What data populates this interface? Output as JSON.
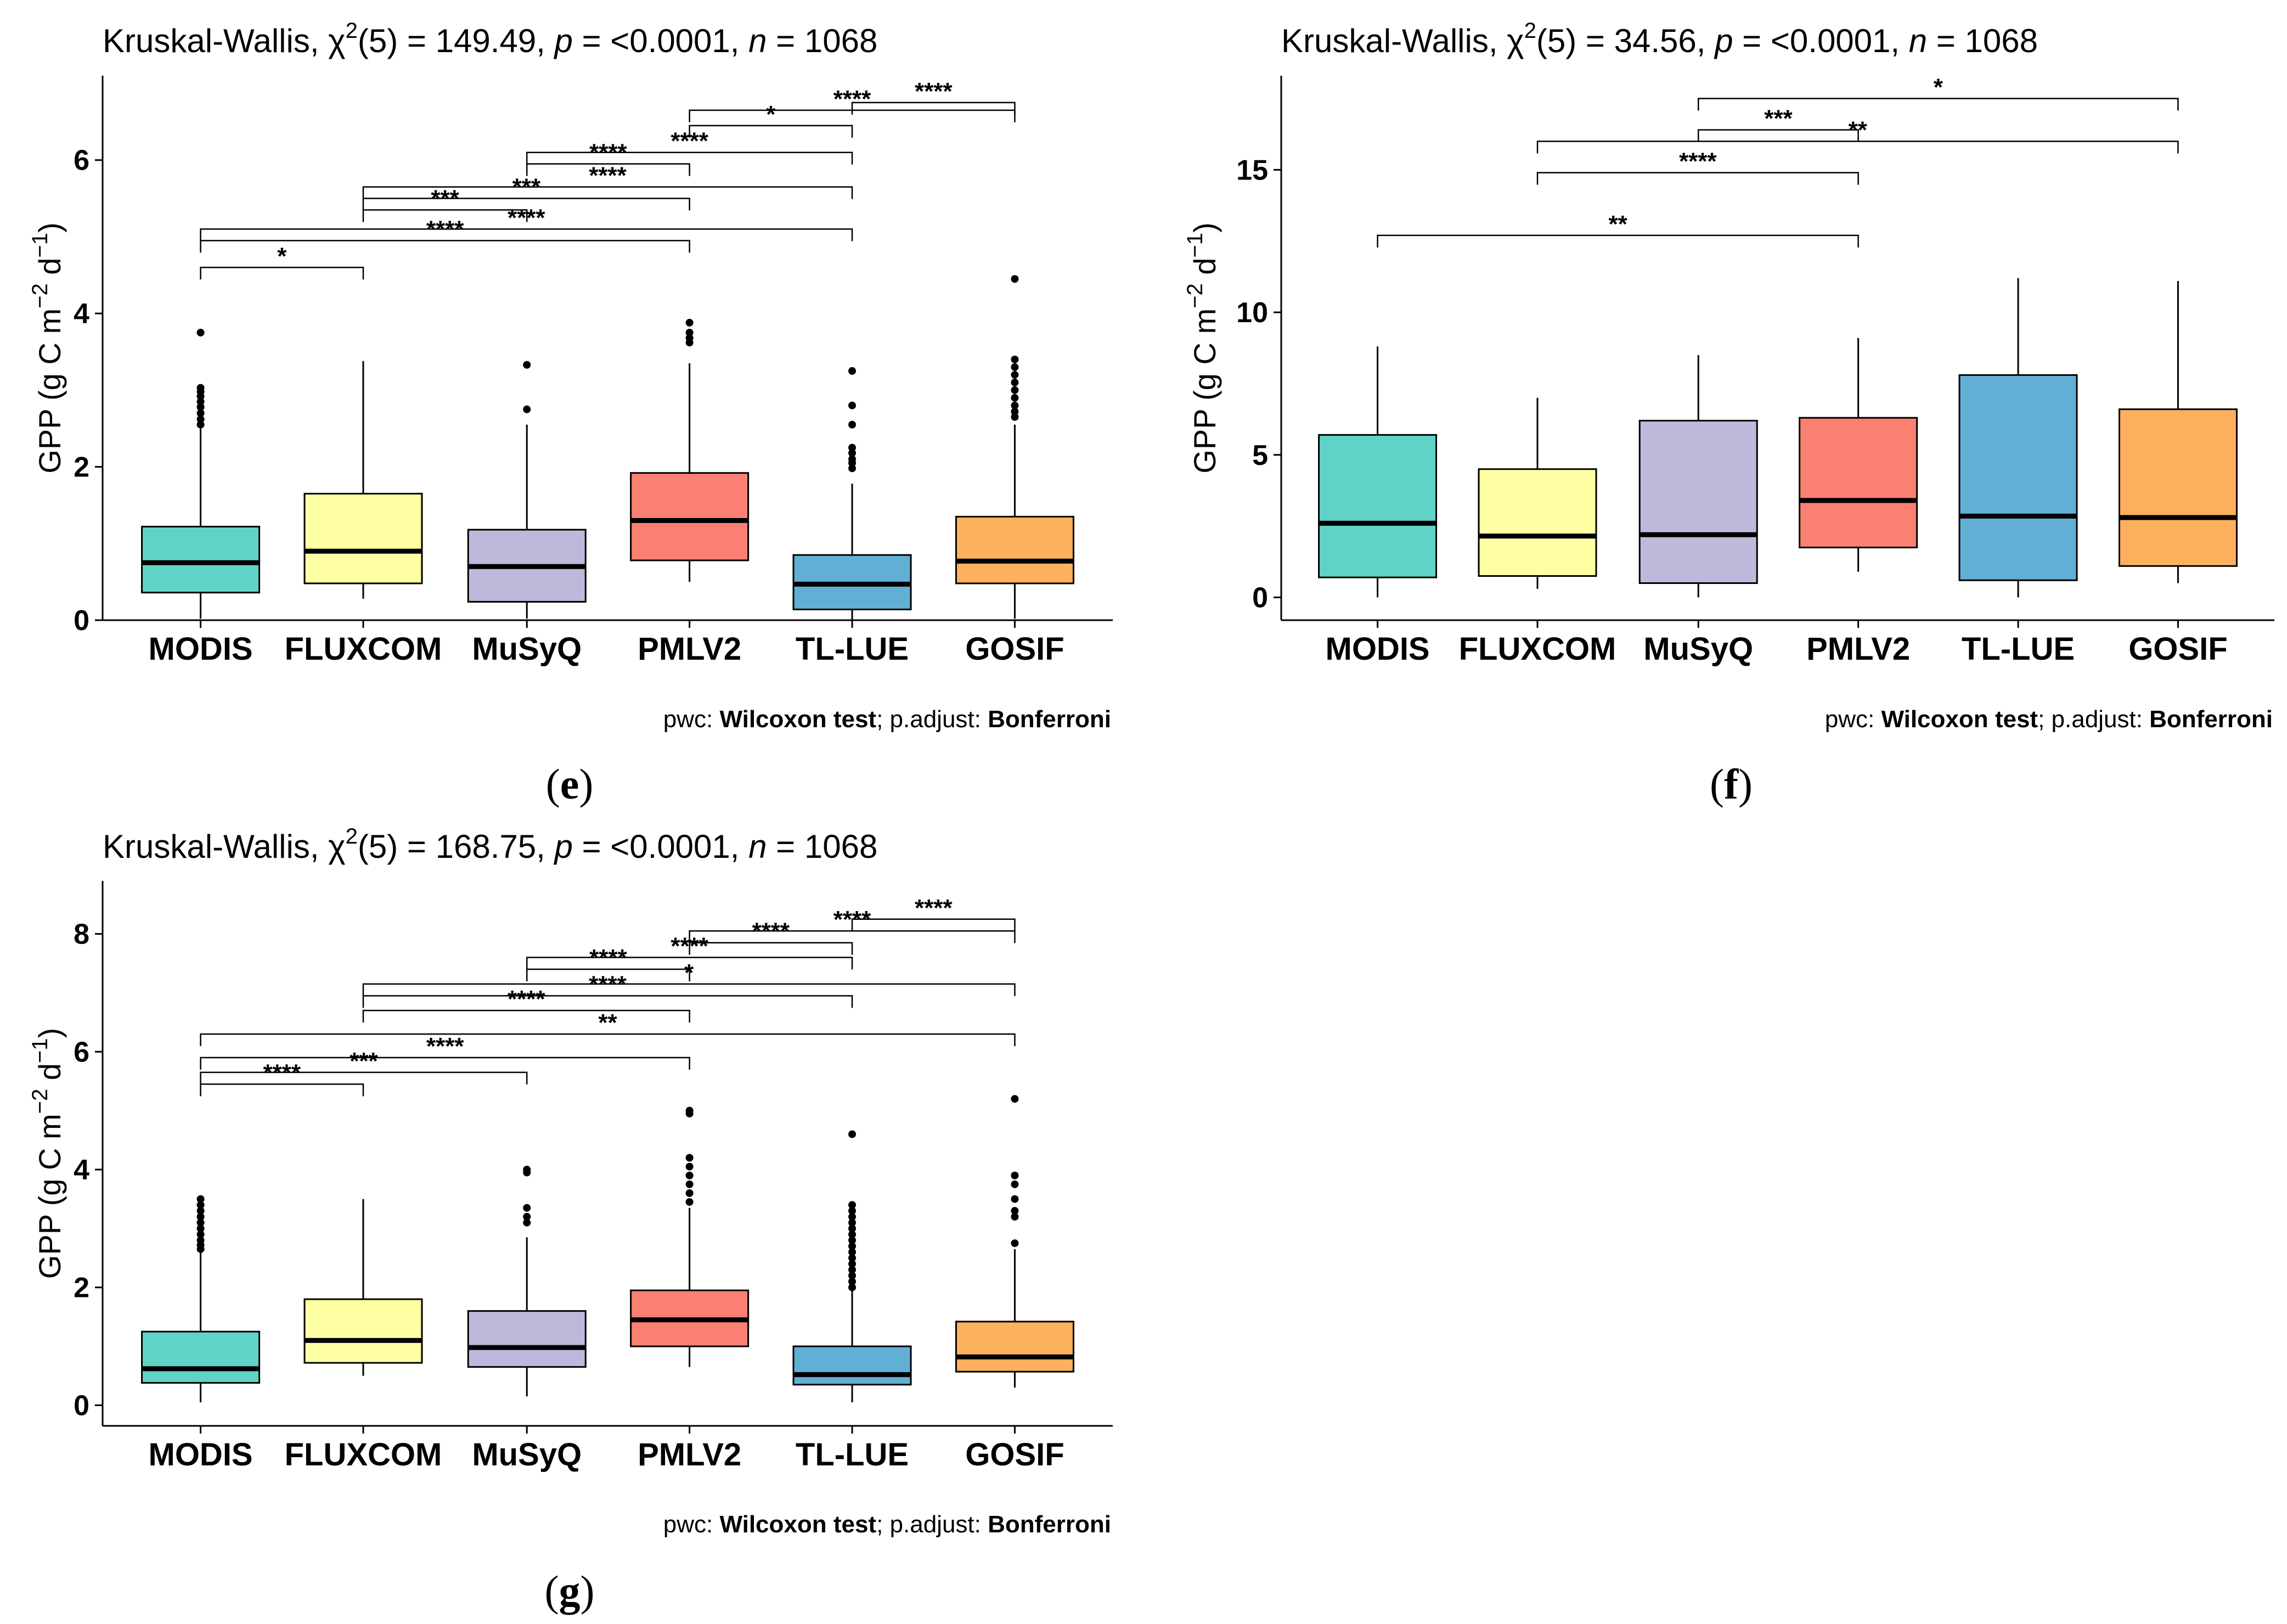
{
  "chart_data": [
    {
      "panel": "(e)",
      "type": "box",
      "title": {
        "test": "Kruskal-Wallis, ",
        "chi": "χ",
        "sup": "2",
        "df": "(5) = 149.49, ",
        "p_label": "p",
        "p_val": " = <0.0001, ",
        "n_label": "n",
        "n_val": " = 1068"
      },
      "ylabel": {
        "pre": "GPP (g C m",
        "sup1": "−2",
        "mid": " d",
        "sup2": "−1",
        "post": ")"
      },
      "ylim": [
        0,
        7.1
      ],
      "yticks": [
        0,
        2,
        4,
        6
      ],
      "footer": {
        "pre": "pwc: ",
        "test": "Wilcoxon test",
        "mid": "; p.adjust: ",
        "adj": "Bonferroni"
      },
      "categories": [
        "MODIS",
        "FLUXCOM",
        "MuSyQ",
        "PMLV2",
        "TL-LUE",
        "GOSIF"
      ],
      "colors": [
        "#5fd3c5",
        "#ffffa3",
        "#bfb8da",
        "#fa8072",
        "#62afd6",
        "#fdb05e"
      ],
      "boxes": [
        {
          "whislo": 0.02,
          "q1": 0.36,
          "med": 0.75,
          "q3": 1.22,
          "whishi": 2.5,
          "outliers": [
            2.55,
            2.62,
            2.7,
            2.78,
            2.85,
            2.92,
            2.98,
            3.03,
            3.75
          ]
        },
        {
          "whislo": 0.28,
          "q1": 0.48,
          "med": 0.9,
          "q3": 1.65,
          "whishi": 3.38,
          "outliers": []
        },
        {
          "whislo": 0.02,
          "q1": 0.24,
          "med": 0.7,
          "q3": 1.18,
          "whishi": 2.55,
          "outliers": [
            2.75,
            3.33
          ]
        },
        {
          "whislo": 0.5,
          "q1": 0.78,
          "med": 1.3,
          "q3": 1.92,
          "whishi": 3.35,
          "outliers": [
            3.62,
            3.68,
            3.75,
            3.88
          ]
        },
        {
          "whislo": 0.0,
          "q1": 0.14,
          "med": 0.47,
          "q3": 0.85,
          "whishi": 1.78,
          "outliers": [
            1.98,
            2.05,
            2.1,
            2.18,
            2.25,
            2.55,
            2.8,
            3.25
          ]
        },
        {
          "whislo": 0.02,
          "q1": 0.48,
          "med": 0.77,
          "q3": 1.35,
          "whishi": 2.55,
          "outliers": [
            2.65,
            2.72,
            2.8,
            2.9,
            3.0,
            3.1,
            3.2,
            3.3,
            3.4,
            4.45
          ]
        }
      ],
      "brackets": [
        {
          "from": 0,
          "to": 1,
          "y": 4.6,
          "label": "*"
        },
        {
          "from": 0,
          "to": 3,
          "y": 4.95,
          "label": "****"
        },
        {
          "from": 0,
          "to": 4,
          "y": 5.1,
          "label": "****"
        },
        {
          "from": 1,
          "to": 2,
          "y": 5.35,
          "label": "***"
        },
        {
          "from": 1,
          "to": 3,
          "y": 5.5,
          "label": "***"
        },
        {
          "from": 1,
          "to": 4,
          "y": 5.65,
          "label": "****"
        },
        {
          "from": 2,
          "to": 3,
          "y": 5.95,
          "label": "****"
        },
        {
          "from": 2,
          "to": 4,
          "y": 6.1,
          "label": "****"
        },
        {
          "from": 3,
          "to": 4,
          "y": 6.45,
          "label": "*"
        },
        {
          "from": 3,
          "to": 5,
          "y": 6.65,
          "label": "****"
        },
        {
          "from": 4,
          "to": 5,
          "y": 6.75,
          "label": "****"
        }
      ]
    },
    {
      "panel": "(f)",
      "type": "box",
      "title": {
        "test": "Kruskal-Wallis, ",
        "chi": "χ",
        "sup": "2",
        "df": "(5) = 34.56, ",
        "p_label": "p",
        "p_val": " = <0.0001, ",
        "n_label": "n",
        "n_val": " = 1068"
      },
      "ylabel": {
        "pre": "GPP (g C m",
        "sup1": "−2",
        "mid": " d",
        "sup2": "−1",
        "post": ")"
      },
      "ylim": [
        -0.8,
        18.3
      ],
      "yticks": [
        0,
        5,
        10,
        15
      ],
      "footer": {
        "pre": "pwc: ",
        "test": "Wilcoxon test",
        "mid": "; p.adjust: ",
        "adj": "Bonferroni"
      },
      "categories": [
        "MODIS",
        "FLUXCOM",
        "MuSyQ",
        "PMLV2",
        "TL-LUE",
        "GOSIF"
      ],
      "colors": [
        "#5fd3c5",
        "#ffffa3",
        "#bfb8da",
        "#fa8072",
        "#62afd6",
        "#fdb05e"
      ],
      "boxes": [
        {
          "whislo": 0.0,
          "q1": 0.7,
          "med": 2.6,
          "q3": 5.7,
          "whishi": 8.8,
          "outliers": []
        },
        {
          "whislo": 0.3,
          "q1": 0.75,
          "med": 2.15,
          "q3": 4.5,
          "whishi": 7.0,
          "outliers": []
        },
        {
          "whislo": 0.0,
          "q1": 0.5,
          "med": 2.2,
          "q3": 6.2,
          "whishi": 8.5,
          "outliers": []
        },
        {
          "whislo": 0.9,
          "q1": 1.75,
          "med": 3.4,
          "q3": 6.3,
          "whishi": 9.1,
          "outliers": []
        },
        {
          "whislo": 0.0,
          "q1": 0.6,
          "med": 2.85,
          "q3": 7.8,
          "whishi": 11.2,
          "outliers": []
        },
        {
          "whislo": 0.5,
          "q1": 1.1,
          "med": 2.8,
          "q3": 6.6,
          "whishi": 11.1,
          "outliers": []
        }
      ],
      "brackets": [
        {
          "from": 0,
          "to": 3,
          "y": 12.7,
          "label": "**"
        },
        {
          "from": 1,
          "to": 3,
          "y": 14.9,
          "label": "****"
        },
        {
          "from": 1,
          "to": 5,
          "y": 16.0,
          "label": "**"
        },
        {
          "from": 2,
          "to": 3,
          "y": 16.4,
          "label": "***"
        },
        {
          "from": 2,
          "to": 5,
          "y": 17.5,
          "label": "*"
        }
      ]
    },
    {
      "panel": "(g)",
      "type": "box",
      "title": {
        "test": "Kruskal-Wallis, ",
        "chi": "χ",
        "sup": "2",
        "df": "(5) = 168.75, ",
        "p_label": "p",
        "p_val": " = <0.0001, ",
        "n_label": "n",
        "n_val": " = 1068"
      },
      "ylabel": {
        "pre": "GPP (g C m",
        "sup1": "−2",
        "mid": " d",
        "sup2": "−1",
        "post": ")"
      },
      "ylim": [
        -0.35,
        8.9
      ],
      "yticks": [
        0,
        2,
        4,
        6,
        8
      ],
      "footer": {
        "pre": "pwc: ",
        "test": "Wilcoxon test",
        "mid": "; p.adjust: ",
        "adj": "Bonferroni"
      },
      "categories": [
        "MODIS",
        "FLUXCOM",
        "MuSyQ",
        "PMLV2",
        "TL-LUE",
        "GOSIF"
      ],
      "colors": [
        "#5fd3c5",
        "#ffffa3",
        "#bfb8da",
        "#fa8072",
        "#62afd6",
        "#fdb05e"
      ],
      "boxes": [
        {
          "whislo": 0.05,
          "q1": 0.38,
          "med": 0.62,
          "q3": 1.25,
          "whishi": 2.6,
          "outliers": [
            2.65,
            2.72,
            2.8,
            2.9,
            3.0,
            3.1,
            3.2,
            3.3,
            3.4,
            3.5
          ]
        },
        {
          "whislo": 0.5,
          "q1": 0.72,
          "med": 1.1,
          "q3": 1.8,
          "whishi": 3.5,
          "outliers": []
        },
        {
          "whislo": 0.15,
          "q1": 0.65,
          "med": 0.98,
          "q3": 1.6,
          "whishi": 2.85,
          "outliers": [
            3.1,
            3.2,
            3.35,
            3.95,
            4.0
          ]
        },
        {
          "whislo": 0.65,
          "q1": 1.0,
          "med": 1.45,
          "q3": 1.95,
          "whishi": 3.35,
          "outliers": [
            3.45,
            3.6,
            3.75,
            3.9,
            4.05,
            4.2,
            4.95,
            5.0
          ]
        },
        {
          "whislo": 0.05,
          "q1": 0.35,
          "med": 0.52,
          "q3": 1.0,
          "whishi": 1.95,
          "outliers": [
            2.0,
            2.1,
            2.2,
            2.3,
            2.4,
            2.5,
            2.6,
            2.7,
            2.8,
            2.9,
            3.0,
            3.1,
            3.2,
            3.3,
            3.4,
            4.6
          ]
        },
        {
          "whislo": 0.3,
          "q1": 0.57,
          "med": 0.82,
          "q3": 1.42,
          "whishi": 2.65,
          "outliers": [
            2.75,
            3.2,
            3.3,
            3.5,
            3.75,
            3.9,
            5.2
          ]
        }
      ],
      "brackets": [
        {
          "from": 0,
          "to": 1,
          "y": 5.45,
          "label": "****"
        },
        {
          "from": 0,
          "to": 2,
          "y": 5.65,
          "label": "***"
        },
        {
          "from": 0,
          "to": 3,
          "y": 5.9,
          "label": "****"
        },
        {
          "from": 0,
          "to": 5,
          "y": 6.3,
          "label": "**"
        },
        {
          "from": 1,
          "to": 3,
          "y": 6.7,
          "label": "****"
        },
        {
          "from": 1,
          "to": 4,
          "y": 6.95,
          "label": "****"
        },
        {
          "from": 1,
          "to": 5,
          "y": 7.15,
          "label": "*"
        },
        {
          "from": 2,
          "to": 3,
          "y": 7.4,
          "label": "****"
        },
        {
          "from": 2,
          "to": 4,
          "y": 7.6,
          "label": "****"
        },
        {
          "from": 3,
          "to": 4,
          "y": 7.85,
          "label": "****"
        },
        {
          "from": 3,
          "to": 5,
          "y": 8.05,
          "label": "****"
        },
        {
          "from": 4,
          "to": 5,
          "y": 8.25,
          "label": "****"
        }
      ]
    }
  ]
}
